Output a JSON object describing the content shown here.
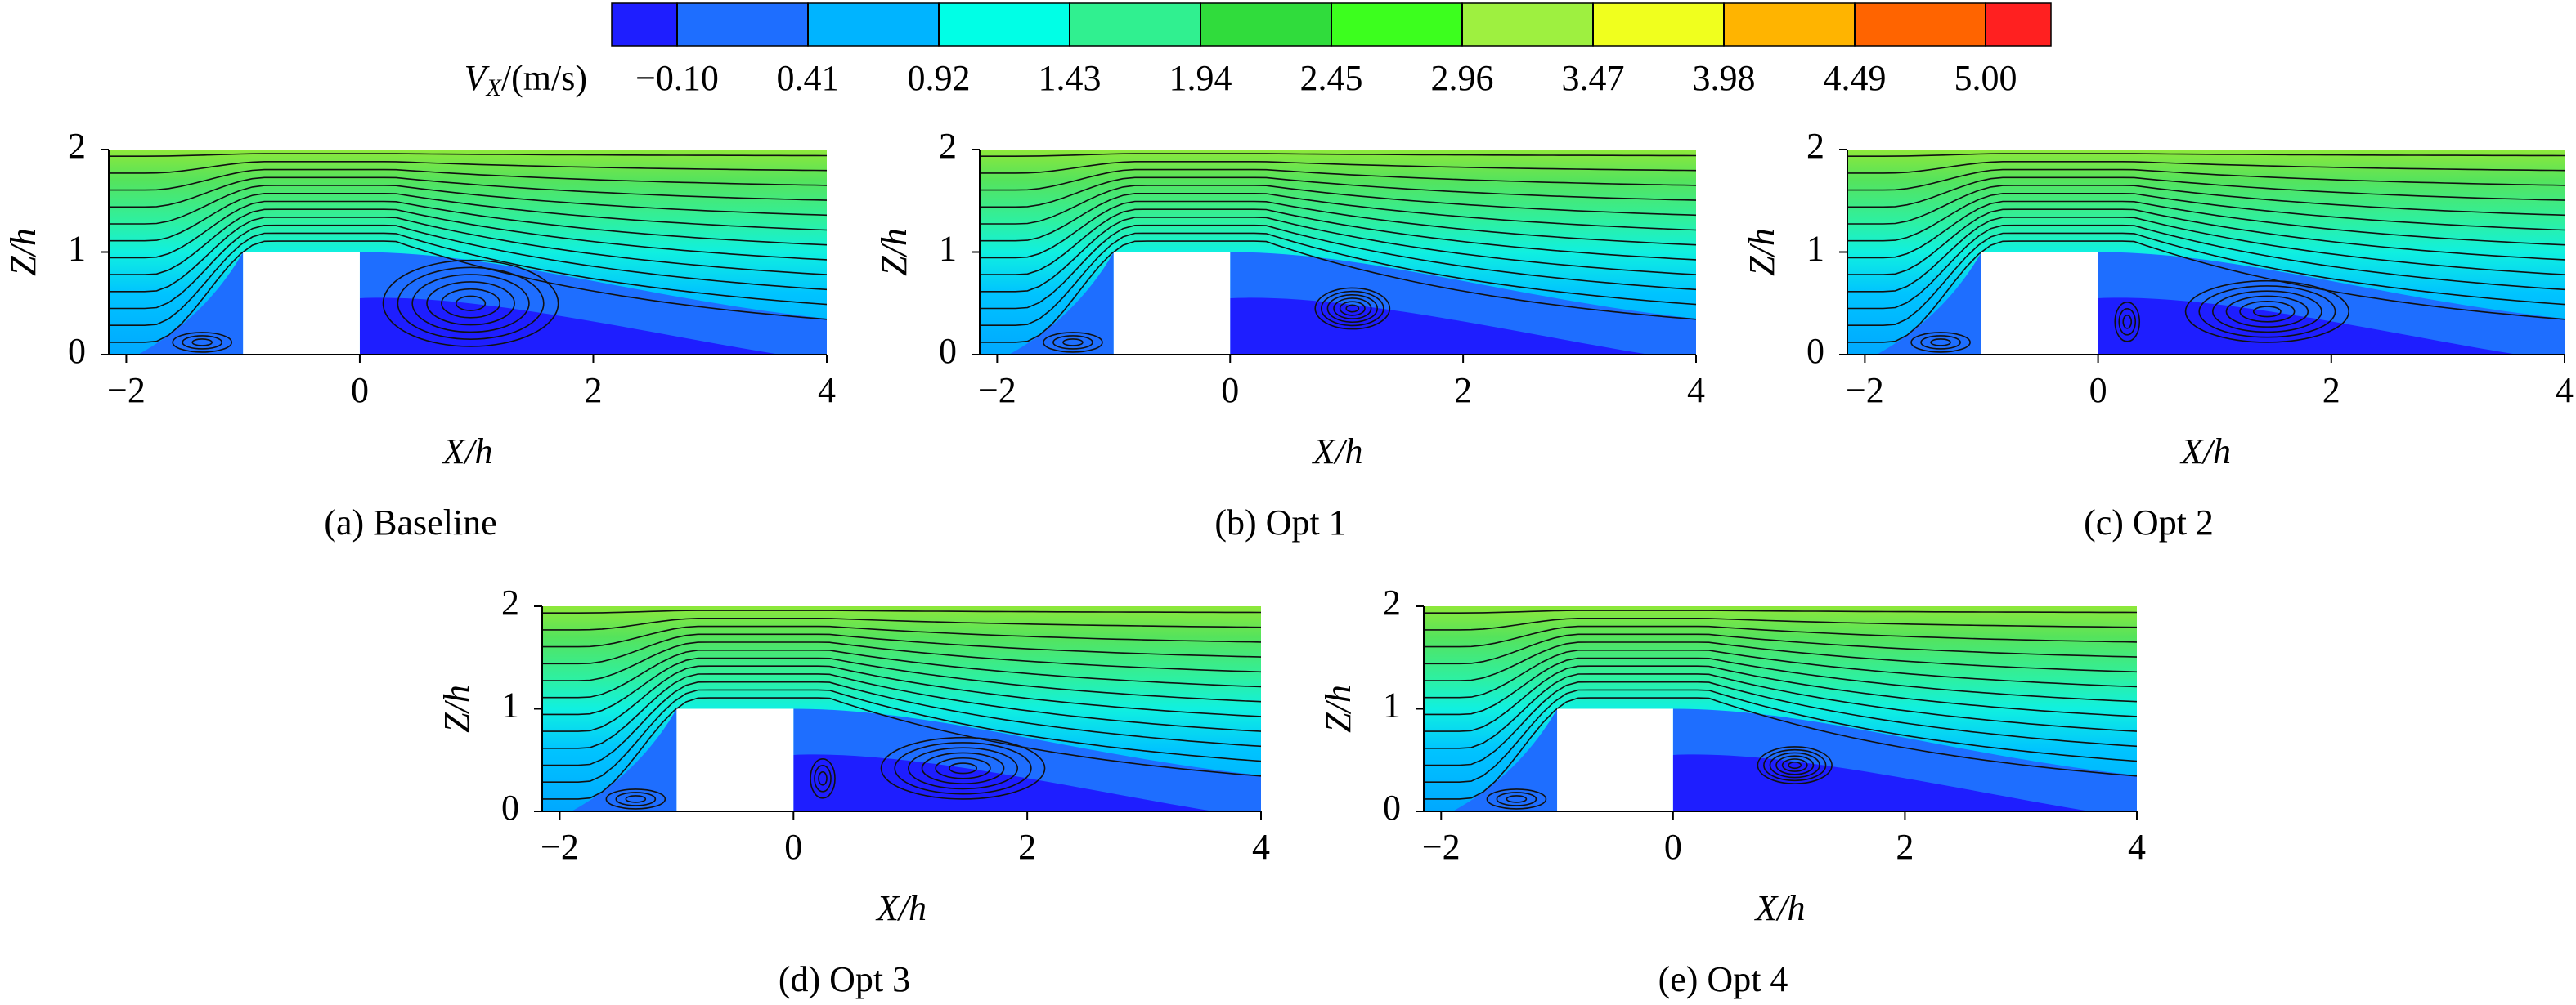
{
  "colorbar": {
    "label": {
      "symbol": "V",
      "subscript": "X",
      "unit": "/(m/s)"
    },
    "levels": [
      {
        "value": -0.1,
        "label": "−0.10"
      },
      0.41,
      0.92,
      1.43,
      1.94,
      2.45,
      2.96,
      3.47,
      3.98,
      4.49,
      {
        "value": 5,
        "label": "5.00"
      }
    ],
    "colors": [
      "#1e1eff",
      "#1e6eff",
      "#00b4ff",
      "#00ffe6",
      "#30f090",
      "#30dc3c",
      "#3cff1e",
      "#9ef040",
      "#f0ff1e",
      "#ffb400",
      "#ff6400",
      "#ff2020"
    ]
  },
  "chart_data": [
    {
      "type": "contour",
      "caption": "(a) Baseline",
      "xlabel": "X/h",
      "ylabel": "Z/h",
      "xlim": [
        -2.15,
        4
      ],
      "ylim": [
        0,
        2
      ],
      "xticks": [
        {
          "value": -2,
          "label": "−2"
        },
        0,
        2,
        4
      ],
      "yticks": [
        0,
        1,
        2
      ]
    },
    {
      "type": "contour",
      "caption": "(b) Opt 1",
      "xlabel": "X/h",
      "ylabel": "Z/h",
      "xlim": [
        -2.15,
        4
      ],
      "ylim": [
        0,
        2
      ],
      "xticks": [
        {
          "value": -2,
          "label": "−2"
        },
        0,
        2,
        4
      ],
      "yticks": [
        0,
        1,
        2
      ]
    },
    {
      "type": "contour",
      "caption": "(c) Opt 2",
      "xlabel": "X/h",
      "ylabel": "Z/h",
      "xlim": [
        -2.15,
        4
      ],
      "ylim": [
        0,
        2
      ],
      "xticks": [
        {
          "value": -2,
          "label": "−2"
        },
        0,
        2,
        4
      ],
      "yticks": [
        0,
        1,
        2
      ]
    },
    {
      "type": "contour",
      "caption": "(d) Opt 3",
      "xlabel": "X/h",
      "ylabel": "Z/h",
      "xlim": [
        -2.15,
        4
      ],
      "ylim": [
        0,
        2
      ],
      "xticks": [
        {
          "value": -2,
          "label": "−2"
        },
        0,
        2,
        4
      ],
      "yticks": [
        0,
        1,
        2
      ]
    },
    {
      "type": "contour",
      "caption": "(e) Opt 4",
      "xlabel": "X/h",
      "ylabel": "Z/h",
      "xlim": [
        -2.15,
        4
      ],
      "ylim": [
        0,
        2
      ],
      "xticks": [
        {
          "value": -2,
          "label": "−2"
        },
        0,
        2,
        4
      ],
      "yticks": [
        0,
        1,
        2
      ]
    }
  ]
}
